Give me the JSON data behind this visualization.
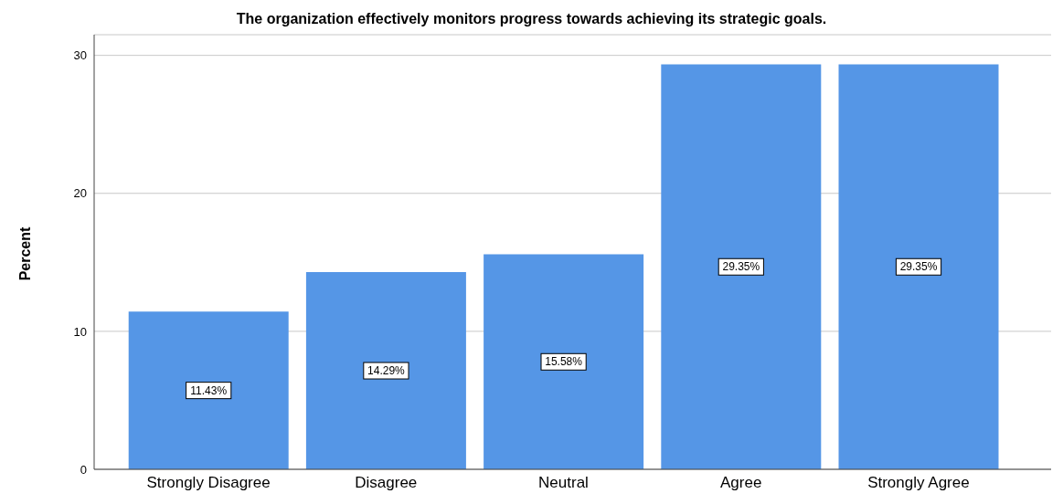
{
  "chart_data": {
    "type": "bar",
    "title": "The organization effectively monitors progress towards achieving its strategic goals.",
    "ylabel": "Percent",
    "categories": [
      "Strongly Disagree",
      "Disagree",
      "Neutral",
      "Agree",
      "Strongly Agree"
    ],
    "values": [
      11.43,
      14.29,
      15.58,
      29.35,
      29.35
    ],
    "value_labels": [
      "11.43%",
      "14.29%",
      "15.58%",
      "29.35%",
      "29.35%"
    ],
    "color": "#5596e6",
    "ylim": [
      0,
      31.5
    ],
    "yticks": [
      0,
      10,
      20,
      30
    ],
    "grid": "y"
  }
}
